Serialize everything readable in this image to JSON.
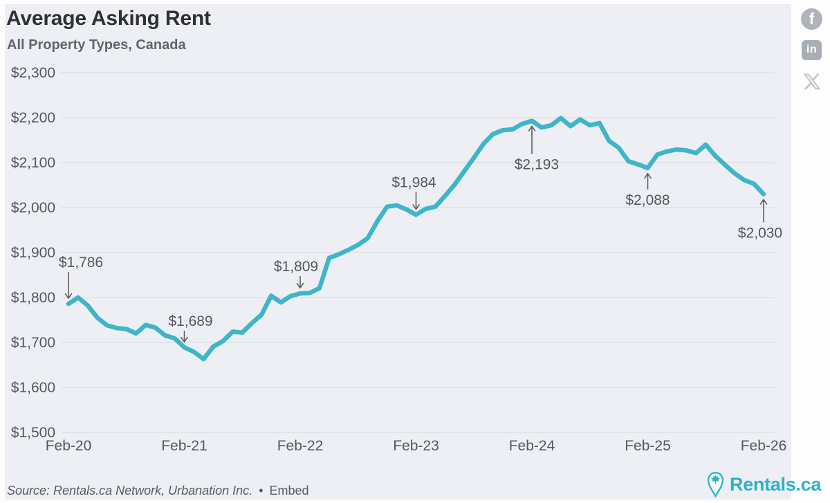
{
  "header": {
    "title": "Average Asking Rent",
    "subtitle": "All Property Types, Canada"
  },
  "share": {
    "facebook_glyph": "f",
    "linkedin_glyph": "in",
    "icons": [
      "facebook",
      "linkedin",
      "x-twitter"
    ]
  },
  "footer": {
    "source": "Source: Rentals.ca Network, Urbanation Inc.",
    "separator": "•",
    "embed_label": "Embed"
  },
  "logo": {
    "text": "Rentals.ca"
  },
  "colors": {
    "line": "#3fb5c9",
    "panel_background": "#edeff5",
    "grid": "#d6d8dd",
    "axis_text": "#55575c",
    "annotation_text": "#55575c",
    "arrow": "#5d5e63",
    "title_text": "#2f3034",
    "subtitle_text": "#626469",
    "logo_teal": "#2db1c7",
    "icon_gray": "#afb3ba"
  },
  "chart_data": {
    "type": "line",
    "title": "Average Asking Rent",
    "subtitle": "All Property Types, Canada",
    "grid": "horizontal",
    "legend": false,
    "ylim": [
      1500,
      2300
    ],
    "ytick_step": 100,
    "ytick_labels": [
      "$1,500",
      "$1,600",
      "$1,700",
      "$1,800",
      "$1,900",
      "$2,000",
      "$2,100",
      "$2,200",
      "$2,300"
    ],
    "xtick_labels": [
      "Feb-20",
      "Feb-21",
      "Feb-22",
      "Feb-23",
      "Feb-24",
      "Feb-25",
      "Feb-26"
    ],
    "x": [
      "Feb-20",
      "Mar-20",
      "Apr-20",
      "May-20",
      "Jun-20",
      "Jul-20",
      "Aug-20",
      "Sep-20",
      "Oct-20",
      "Nov-20",
      "Dec-20",
      "Jan-21",
      "Feb-21",
      "Mar-21",
      "Apr-21",
      "May-21",
      "Jun-21",
      "Jul-21",
      "Aug-21",
      "Sep-21",
      "Oct-21",
      "Nov-21",
      "Dec-21",
      "Jan-22",
      "Feb-22",
      "Mar-22",
      "Apr-22",
      "May-22",
      "Jun-22",
      "Jul-22",
      "Aug-22",
      "Sep-22",
      "Oct-22",
      "Nov-22",
      "Dec-22",
      "Jan-23",
      "Feb-23",
      "Mar-23",
      "Apr-23",
      "May-23",
      "Jun-23",
      "Jul-23",
      "Aug-23",
      "Sep-23",
      "Oct-23",
      "Nov-23",
      "Dec-23",
      "Jan-24",
      "Feb-24",
      "Mar-24",
      "Apr-24",
      "May-24",
      "Jun-24",
      "Jul-24",
      "Aug-24",
      "Sep-24",
      "Oct-24",
      "Nov-24",
      "Dec-24",
      "Jan-25",
      "Feb-25",
      "Mar-25",
      "Apr-25",
      "May-25",
      "Jun-25",
      "Jul-25",
      "Aug-25",
      "Sep-25",
      "Oct-25",
      "Nov-25",
      "Dec-25",
      "Jan-26",
      "Feb-26"
    ],
    "series": [
      {
        "name": "Average Asking Rent",
        "values": [
          1786,
          1800,
          1782,
          1755,
          1738,
          1732,
          1730,
          1720,
          1739,
          1733,
          1716,
          1709,
          1689,
          1679,
          1663,
          1691,
          1703,
          1724,
          1722,
          1743,
          1762,
          1804,
          1789,
          1803,
          1809,
          1810,
          1821,
          1888,
          1896,
          1906,
          1917,
          1932,
          1970,
          2002,
          2005,
          1996,
          1984,
          1997,
          2002,
          2026,
          2051,
          2081,
          2111,
          2142,
          2164,
          2172,
          2174,
          2186,
          2193,
          2178,
          2183,
          2199,
          2181,
          2196,
          2183,
          2188,
          2148,
          2133,
          2103,
          2096,
          2088,
          2118,
          2125,
          2129,
          2127,
          2121,
          2140,
          2115,
          2095,
          2076,
          2061,
          2053,
          2030
        ]
      }
    ],
    "annotations": [
      {
        "label": "$1,786",
        "x": "Feb-20",
        "index": 0,
        "value": 1786,
        "direction": "down",
        "dx": 18,
        "len": 38
      },
      {
        "label": "$1,689",
        "x": "Feb-21",
        "index": 12,
        "value": 1689,
        "direction": "down",
        "dx": 9,
        "len": 16
      },
      {
        "label": "$1,809",
        "x": "Feb-22",
        "index": 24,
        "value": 1809,
        "direction": "down",
        "dx": -6,
        "len": 17
      },
      {
        "label": "$1,984",
        "x": "Feb-23",
        "index": 36,
        "value": 1984,
        "direction": "down",
        "dx": -3,
        "len": 25
      },
      {
        "label": "$2,193",
        "x": "Feb-24",
        "index": 48,
        "value": 2193,
        "direction": "up",
        "dx": 7,
        "len": 40
      },
      {
        "label": "$2,088",
        "x": "Feb-25",
        "index": 60,
        "value": 2088,
        "direction": "up",
        "dx": 0,
        "len": 23
      },
      {
        "label": "$2,030",
        "x": "Feb-26",
        "index": 72,
        "value": 2030,
        "direction": "up",
        "dx": -5,
        "len": 33
      }
    ]
  }
}
